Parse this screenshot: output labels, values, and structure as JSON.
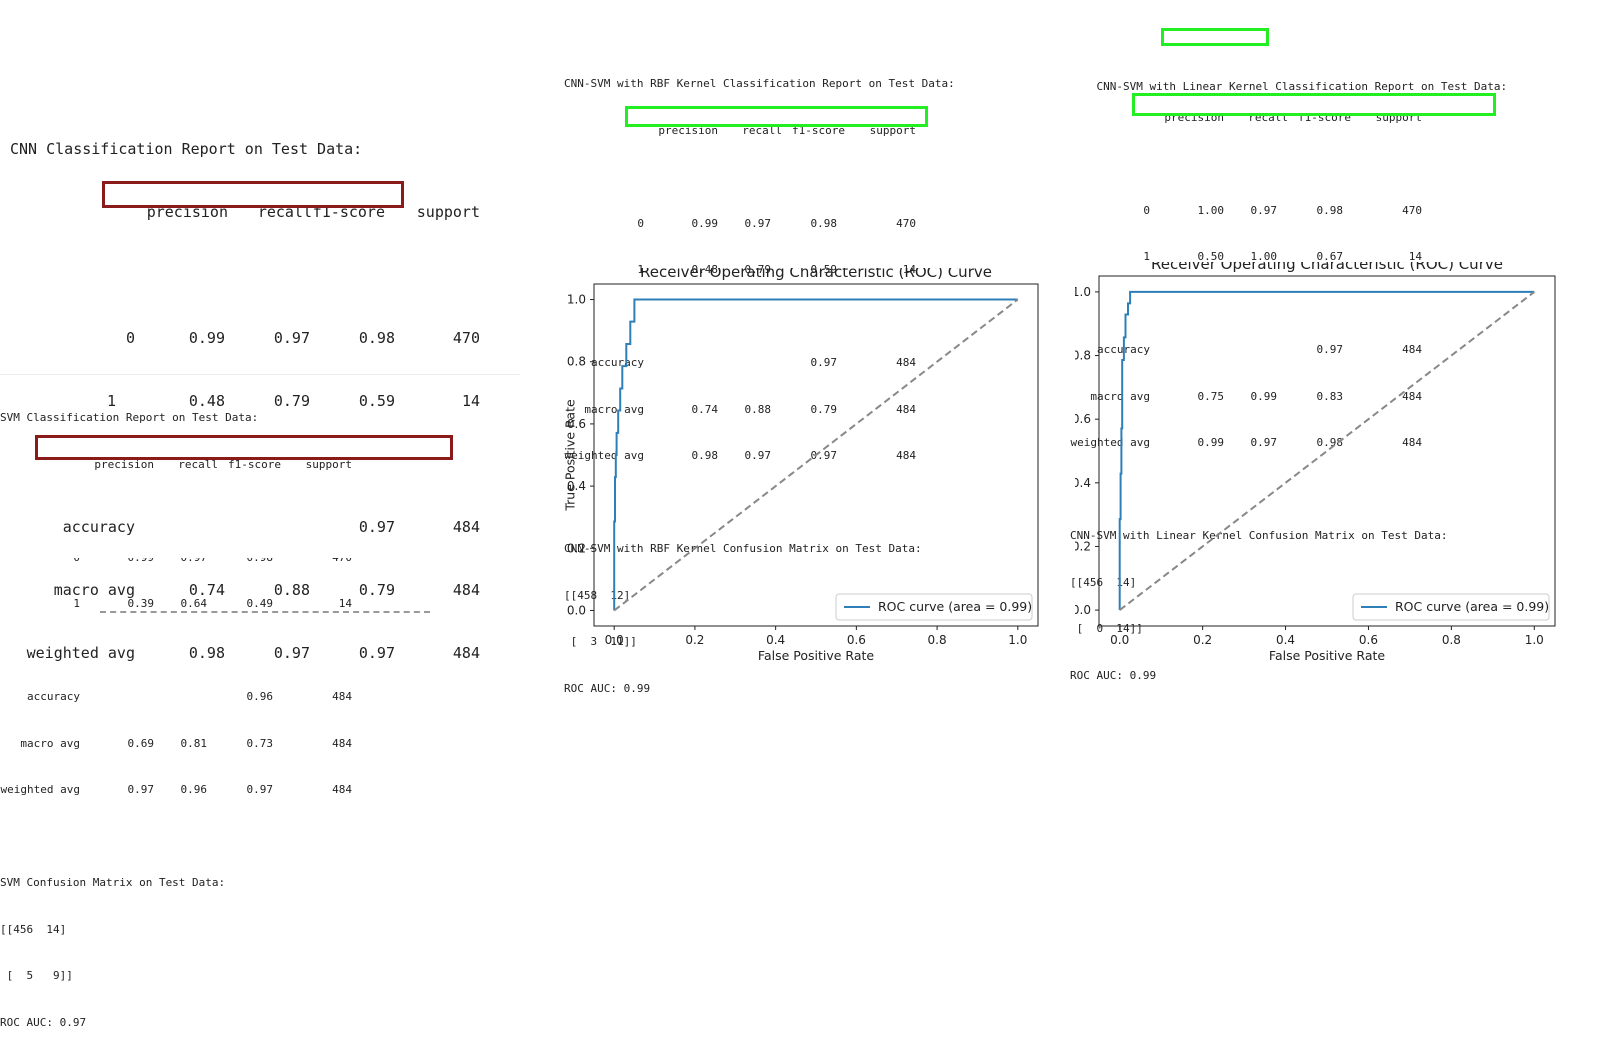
{
  "cnn_report": {
    "title": "CNN Classification Report on Test Data:",
    "headers": [
      "precision",
      "recall",
      "f1-score",
      "support"
    ],
    "rows": [
      [
        "0",
        "0.99",
        "0.97",
        "0.98",
        "470"
      ],
      [
        "1",
        "0.48",
        "0.79",
        "0.59",
        "14"
      ],
      [
        "accuracy",
        "",
        "",
        "0.97",
        "484"
      ],
      [
        "macro avg",
        "0.74",
        "0.88",
        "0.79",
        "484"
      ],
      [
        "weighted avg",
        "0.98",
        "0.97",
        "0.97",
        "484"
      ]
    ]
  },
  "svm_report": {
    "title": "SVM Classification Report on Test Data:",
    "headers": [
      "precision",
      "recall",
      "f1-score",
      "support"
    ],
    "rows": [
      [
        "0",
        "0.99",
        "0.97",
        "0.98",
        "470"
      ],
      [
        "1",
        "0.39",
        "0.64",
        "0.49",
        "14"
      ],
      [
        "accuracy",
        "",
        "",
        "0.96",
        "484"
      ],
      [
        "macro avg",
        "0.69",
        "0.81",
        "0.73",
        "484"
      ],
      [
        "weighted avg",
        "0.97",
        "0.96",
        "0.97",
        "484"
      ]
    ],
    "cm_title": "SVM Confusion Matrix on Test Data:",
    "cm_lines": [
      "[[456  14]",
      " [  5   9]]"
    ],
    "auc": "ROC AUC: 0.97"
  },
  "rbf_report": {
    "title": "CNN-SVM with RBF Kernel Classification Report on Test Data:",
    "headers": [
      "precision",
      "recall",
      "f1-score",
      "support"
    ],
    "rows": [
      [
        "0",
        "0.99",
        "0.97",
        "0.98",
        "470"
      ],
      [
        "1",
        "0.48",
        "0.79",
        "0.59",
        "14"
      ],
      [
        "accuracy",
        "",
        "",
        "0.97",
        "484"
      ],
      [
        "macro avg",
        "0.74",
        "0.88",
        "0.79",
        "484"
      ],
      [
        "weighted avg",
        "0.98",
        "0.97",
        "0.97",
        "484"
      ]
    ],
    "cm_title": "CNN-SVM with RBF Kernel Confusion Matrix on Test Data:",
    "cm_lines": [
      "[[458  12]",
      " [  3  11]]"
    ],
    "auc": "ROC AUC: 0.99"
  },
  "linear_report": {
    "title_prefix": "CNN-SVM with ",
    "title_highlight": "Linear Kernel",
    "title_suffix": " Classification Report on Test Data:",
    "headers": [
      "precision",
      "recall",
      "f1-score",
      "support"
    ],
    "rows": [
      [
        "0",
        "1.00",
        "0.97",
        "0.98",
        "470"
      ],
      [
        "1",
        "0.50",
        "1.00",
        "0.67",
        "14"
      ],
      [
        "accuracy",
        "",
        "",
        "0.97",
        "484"
      ],
      [
        "macro avg",
        "0.75",
        "0.99",
        "0.83",
        "484"
      ],
      [
        "weighted avg",
        "0.99",
        "0.97",
        "0.98",
        "484"
      ]
    ],
    "cm_title": "CNN-SVM with Linear Kernel Confusion Matrix on Test Data:",
    "cm_lines": [
      "[[456  14]",
      " [  0  14]]"
    ],
    "auc": "ROC AUC: 0.99"
  },
  "chart_data": [
    {
      "type": "line",
      "title": "Receiver Operating Characteristic (ROC) Curve",
      "xlabel": "False Positive Rate",
      "ylabel": "True Positive Rate",
      "xlim": [
        -0.05,
        1.05
      ],
      "ylim": [
        -0.05,
        1.05
      ],
      "xticks": [
        "0.0",
        "0.2",
        "0.4",
        "0.6",
        "0.8",
        "1.0"
      ],
      "yticks": [
        "0.0",
        "0.2",
        "0.4",
        "0.6",
        "0.8",
        "1.0"
      ],
      "legend_placement": "lower-right",
      "series": [
        {
          "name": "ROC curve (area = 0.99)",
          "color": "#2e7fb8",
          "x": [
            0,
            0,
            0.002,
            0.002,
            0.004,
            0.004,
            0.006,
            0.006,
            0.01,
            0.01,
            0.015,
            0.015,
            0.02,
            0.02,
            0.03,
            0.03,
            0.04,
            0.04,
            0.05,
            0.05,
            1.0
          ],
          "y": [
            0,
            0.286,
            0.286,
            0.429,
            0.429,
            0.5,
            0.5,
            0.571,
            0.571,
            0.643,
            0.643,
            0.714,
            0.714,
            0.786,
            0.786,
            0.857,
            0.857,
            0.929,
            0.929,
            1.0,
            1.0
          ]
        },
        {
          "name": "",
          "color": "#888888",
          "dashed": true,
          "x": [
            0,
            1
          ],
          "y": [
            0,
            1
          ]
        }
      ]
    },
    {
      "type": "line",
      "title": "Receiver Operating Characteristic (ROC) Curve",
      "xlabel": "False Positive Rate",
      "ylabel": "",
      "xlim": [
        -0.05,
        1.05
      ],
      "ylim": [
        -0.05,
        1.05
      ],
      "xticks": [
        "0.0",
        "0.2",
        "0.4",
        "0.6",
        "0.8",
        "1.0"
      ],
      "yticks": [
        "0.0",
        "0.2",
        "0.4",
        "0.6",
        "0.8",
        "1.0"
      ],
      "legend_placement": "lower-right",
      "series": [
        {
          "name": "ROC curve (area = 0.99)",
          "color": "#2e7fb8",
          "x": [
            0,
            0,
            0.002,
            0.002,
            0.004,
            0.004,
            0.006,
            0.006,
            0.01,
            0.01,
            0.014,
            0.014,
            0.02,
            0.02,
            0.025,
            0.025,
            0.03,
            0.03,
            1.0
          ],
          "y": [
            0,
            0.286,
            0.286,
            0.429,
            0.429,
            0.571,
            0.571,
            0.786,
            0.786,
            0.857,
            0.857,
            0.929,
            0.929,
            0.964,
            0.964,
            1.0,
            1.0,
            1.0,
            1.0
          ]
        },
        {
          "name": "",
          "color": "#888888",
          "dashed": true,
          "x": [
            0,
            1
          ],
          "y": [
            0,
            1
          ]
        }
      ]
    }
  ]
}
